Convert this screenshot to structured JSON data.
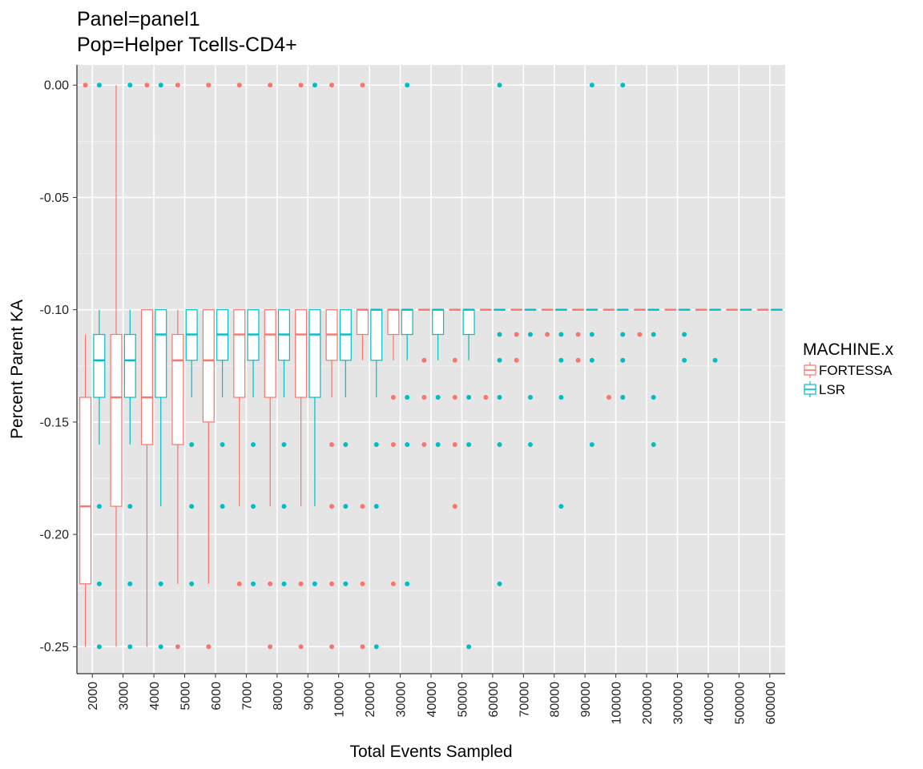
{
  "chart_data": {
    "type": "boxplot",
    "title": "Panel=panel1",
    "subtitle": "Pop=Helper Tcells-CD4+",
    "xlabel": "Total Events Sampled",
    "ylabel": "Percent Parent KA",
    "ylim": [
      -0.262,
      0.009
    ],
    "yticks": [
      0,
      -0.05,
      -0.1,
      -0.15,
      -0.2,
      -0.25
    ],
    "ytick_labels": [
      "0.00",
      "-0.05",
      "-0.10",
      "-0.15",
      "-0.20",
      "-0.25"
    ],
    "categories": [
      "2000",
      "3000",
      "4000",
      "5000",
      "6000",
      "7000",
      "8000",
      "9000",
      "10000",
      "20000",
      "30000",
      "40000",
      "50000",
      "60000",
      "70000",
      "80000",
      "90000",
      "100000",
      "200000",
      "300000",
      "400000",
      "500000",
      "600000"
    ],
    "grid": true,
    "legend": {
      "title": "MACHINE.x",
      "placement": "right",
      "entries": [
        {
          "name": "FORTESSA",
          "color": "#F8766D"
        },
        {
          "name": "LSR",
          "color": "#00BFC4"
        }
      ]
    },
    "series": [
      {
        "name": "FORTESSA",
        "color": "#F8766D",
        "boxes": [
          {
            "category": "2000",
            "whisker_low": -0.25,
            "q1": -0.222,
            "median": -0.1875,
            "q3": -0.139,
            "whisker_high": -0.111,
            "outliers": [
              0
            ]
          },
          {
            "category": "3000",
            "whisker_low": -0.25,
            "q1": -0.1875,
            "median": -0.139,
            "q3": -0.111,
            "whisker_high": 0,
            "outliers": []
          },
          {
            "category": "4000",
            "whisker_low": -0.25,
            "q1": -0.16,
            "median": -0.139,
            "q3": -0.1,
            "whisker_high": -0.1,
            "outliers": [
              0
            ]
          },
          {
            "category": "5000",
            "whisker_low": -0.222,
            "q1": -0.16,
            "median": -0.1225,
            "q3": -0.111,
            "whisker_high": -0.1,
            "outliers": [
              0,
              -0.25
            ]
          },
          {
            "category": "6000",
            "whisker_low": -0.222,
            "q1": -0.15,
            "median": -0.1225,
            "q3": -0.1,
            "whisker_high": -0.1,
            "outliers": [
              0,
              -0.25
            ]
          },
          {
            "category": "7000",
            "whisker_low": -0.1875,
            "q1": -0.139,
            "median": -0.111,
            "q3": -0.1,
            "whisker_high": -0.1,
            "outliers": [
              0,
              -0.222
            ]
          },
          {
            "category": "8000",
            "whisker_low": -0.1875,
            "q1": -0.139,
            "median": -0.111,
            "q3": -0.1,
            "whisker_high": -0.1,
            "outliers": [
              0,
              -0.222,
              -0.25
            ]
          },
          {
            "category": "9000",
            "whisker_low": -0.1875,
            "q1": -0.139,
            "median": -0.111,
            "q3": -0.1,
            "whisker_high": -0.1,
            "outliers": [
              0,
              -0.222,
              -0.25
            ]
          },
          {
            "category": "10000",
            "whisker_low": -0.139,
            "q1": -0.1225,
            "median": -0.111,
            "q3": -0.1,
            "whisker_high": -0.1,
            "outliers": [
              0,
              -0.16,
              -0.1875,
              -0.222,
              -0.25
            ]
          },
          {
            "category": "20000",
            "whisker_low": -0.1225,
            "q1": -0.111,
            "median": -0.1,
            "q3": -0.1,
            "whisker_high": -0.1,
            "outliers": [
              0,
              -0.1875,
              -0.222,
              -0.25
            ]
          },
          {
            "category": "30000",
            "whisker_low": -0.1225,
            "q1": -0.111,
            "median": -0.1,
            "q3": -0.1,
            "whisker_high": -0.1,
            "outliers": [
              -0.139,
              -0.16,
              -0.222
            ]
          },
          {
            "category": "40000",
            "whisker_low": -0.1,
            "q1": -0.1,
            "median": -0.1,
            "q3": -0.1,
            "whisker_high": -0.1,
            "outliers": [
              -0.1225,
              -0.139,
              -0.16
            ]
          },
          {
            "category": "50000",
            "whisker_low": -0.1,
            "q1": -0.1,
            "median": -0.1,
            "q3": -0.1,
            "whisker_high": -0.1,
            "outliers": [
              -0.1225,
              -0.139,
              -0.16,
              -0.1875
            ]
          },
          {
            "category": "60000",
            "whisker_low": -0.1,
            "q1": -0.1,
            "median": -0.1,
            "q3": -0.1,
            "whisker_high": -0.1,
            "outliers": [
              -0.139
            ]
          },
          {
            "category": "70000",
            "whisker_low": -0.1,
            "q1": -0.1,
            "median": -0.1,
            "q3": -0.1,
            "whisker_high": -0.1,
            "outliers": [
              -0.111,
              -0.1225
            ]
          },
          {
            "category": "80000",
            "whisker_low": -0.1,
            "q1": -0.1,
            "median": -0.1,
            "q3": -0.1,
            "whisker_high": -0.1,
            "outliers": [
              -0.111
            ]
          },
          {
            "category": "90000",
            "whisker_low": -0.1,
            "q1": -0.1,
            "median": -0.1,
            "q3": -0.1,
            "whisker_high": -0.1,
            "outliers": [
              -0.111,
              -0.1225
            ]
          },
          {
            "category": "100000",
            "whisker_low": -0.1,
            "q1": -0.1,
            "median": -0.1,
            "q3": -0.1,
            "whisker_high": -0.1,
            "outliers": [
              -0.139
            ]
          },
          {
            "category": "200000",
            "whisker_low": -0.1,
            "q1": -0.1,
            "median": -0.1,
            "q3": -0.1,
            "whisker_high": -0.1,
            "outliers": [
              -0.111
            ]
          },
          {
            "category": "300000",
            "whisker_low": -0.1,
            "q1": -0.1,
            "median": -0.1,
            "q3": -0.1,
            "whisker_high": -0.1,
            "outliers": []
          },
          {
            "category": "400000",
            "whisker_low": -0.1,
            "q1": -0.1,
            "median": -0.1,
            "q3": -0.1,
            "whisker_high": -0.1,
            "outliers": []
          },
          {
            "category": "500000",
            "whisker_low": -0.1,
            "q1": -0.1,
            "median": -0.1,
            "q3": -0.1,
            "whisker_high": -0.1,
            "outliers": []
          },
          {
            "category": "600000",
            "whisker_low": -0.1,
            "q1": -0.1,
            "median": -0.1,
            "q3": -0.1,
            "whisker_high": -0.1,
            "outliers": []
          }
        ]
      },
      {
        "name": "LSR",
        "color": "#00BFC4",
        "boxes": [
          {
            "category": "2000",
            "whisker_low": -0.16,
            "q1": -0.139,
            "median": -0.1225,
            "q3": -0.111,
            "whisker_high": -0.1,
            "outliers": [
              0,
              -0.1875,
              -0.222,
              -0.25
            ]
          },
          {
            "category": "3000",
            "whisker_low": -0.16,
            "q1": -0.139,
            "median": -0.1225,
            "q3": -0.111,
            "whisker_high": -0.1,
            "outliers": [
              0,
              -0.1875,
              -0.222,
              -0.25
            ]
          },
          {
            "category": "4000",
            "whisker_low": -0.1875,
            "q1": -0.139,
            "median": -0.111,
            "q3": -0.1,
            "whisker_high": -0.1,
            "outliers": [
              0,
              -0.222,
              -0.25
            ]
          },
          {
            "category": "5000",
            "whisker_low": -0.139,
            "q1": -0.1225,
            "median": -0.111,
            "q3": -0.1,
            "whisker_high": -0.1,
            "outliers": [
              -0.16,
              -0.1875,
              -0.222
            ]
          },
          {
            "category": "6000",
            "whisker_low": -0.139,
            "q1": -0.1225,
            "median": -0.111,
            "q3": -0.1,
            "whisker_high": -0.1,
            "outliers": [
              -0.16,
              -0.1875
            ]
          },
          {
            "category": "7000",
            "whisker_low": -0.139,
            "q1": -0.1225,
            "median": -0.111,
            "q3": -0.1,
            "whisker_high": -0.1,
            "outliers": [
              -0.16,
              -0.1875,
              -0.222
            ]
          },
          {
            "category": "8000",
            "whisker_low": -0.139,
            "q1": -0.1225,
            "median": -0.111,
            "q3": -0.1,
            "whisker_high": -0.1,
            "outliers": [
              -0.16,
              -0.1875,
              -0.222
            ]
          },
          {
            "category": "9000",
            "whisker_low": -0.1875,
            "q1": -0.139,
            "median": -0.111,
            "q3": -0.1,
            "whisker_high": -0.1,
            "outliers": [
              0,
              -0.222
            ]
          },
          {
            "category": "10000",
            "whisker_low": -0.139,
            "q1": -0.1225,
            "median": -0.111,
            "q3": -0.1,
            "whisker_high": -0.1,
            "outliers": [
              -0.16,
              -0.1875,
              -0.222
            ]
          },
          {
            "category": "20000",
            "whisker_low": -0.139,
            "q1": -0.1225,
            "median": -0.1,
            "q3": -0.1,
            "whisker_high": -0.1,
            "outliers": [
              -0.16,
              -0.1875,
              -0.25
            ]
          },
          {
            "category": "30000",
            "whisker_low": -0.1225,
            "q1": -0.111,
            "median": -0.1,
            "q3": -0.1,
            "whisker_high": -0.1,
            "outliers": [
              0,
              -0.139,
              -0.16,
              -0.222
            ]
          },
          {
            "category": "40000",
            "whisker_low": -0.1225,
            "q1": -0.111,
            "median": -0.1,
            "q3": -0.1,
            "whisker_high": -0.1,
            "outliers": [
              -0.139,
              -0.16
            ]
          },
          {
            "category": "50000",
            "whisker_low": -0.1225,
            "q1": -0.111,
            "median": -0.1,
            "q3": -0.1,
            "whisker_high": -0.1,
            "outliers": [
              -0.139,
              -0.16,
              -0.25
            ]
          },
          {
            "category": "60000",
            "whisker_low": -0.1,
            "q1": -0.1,
            "median": -0.1,
            "q3": -0.1,
            "whisker_high": -0.1,
            "outliers": [
              0,
              -0.111,
              -0.1225,
              -0.139,
              -0.16,
              -0.222
            ]
          },
          {
            "category": "70000",
            "whisker_low": -0.1,
            "q1": -0.1,
            "median": -0.1,
            "q3": -0.1,
            "whisker_high": -0.1,
            "outliers": [
              -0.111,
              -0.139,
              -0.16
            ]
          },
          {
            "category": "80000",
            "whisker_low": -0.1,
            "q1": -0.1,
            "median": -0.1,
            "q3": -0.1,
            "whisker_high": -0.1,
            "outliers": [
              -0.111,
              -0.1225,
              -0.139,
              -0.1875
            ]
          },
          {
            "category": "90000",
            "whisker_low": -0.1,
            "q1": -0.1,
            "median": -0.1,
            "q3": -0.1,
            "whisker_high": -0.1,
            "outliers": [
              0,
              -0.111,
              -0.1225,
              -0.16
            ]
          },
          {
            "category": "100000",
            "whisker_low": -0.1,
            "q1": -0.1,
            "median": -0.1,
            "q3": -0.1,
            "whisker_high": -0.1,
            "outliers": [
              0,
              -0.111,
              -0.1225,
              -0.139
            ]
          },
          {
            "category": "200000",
            "whisker_low": -0.1,
            "q1": -0.1,
            "median": -0.1,
            "q3": -0.1,
            "whisker_high": -0.1,
            "outliers": [
              -0.111,
              -0.139,
              -0.16
            ]
          },
          {
            "category": "300000",
            "whisker_low": -0.1,
            "q1": -0.1,
            "median": -0.1,
            "q3": -0.1,
            "whisker_high": -0.1,
            "outliers": [
              -0.111,
              -0.1225
            ]
          },
          {
            "category": "400000",
            "whisker_low": -0.1,
            "q1": -0.1,
            "median": -0.1,
            "q3": -0.1,
            "whisker_high": -0.1,
            "outliers": [
              -0.1225
            ]
          },
          {
            "category": "500000",
            "whisker_low": -0.1,
            "q1": -0.1,
            "median": -0.1,
            "q3": -0.1,
            "whisker_high": -0.1,
            "outliers": []
          },
          {
            "category": "600000",
            "whisker_low": -0.1,
            "q1": -0.1,
            "median": -0.1,
            "q3": -0.1,
            "whisker_high": -0.1,
            "outliers": []
          }
        ]
      }
    ]
  }
}
